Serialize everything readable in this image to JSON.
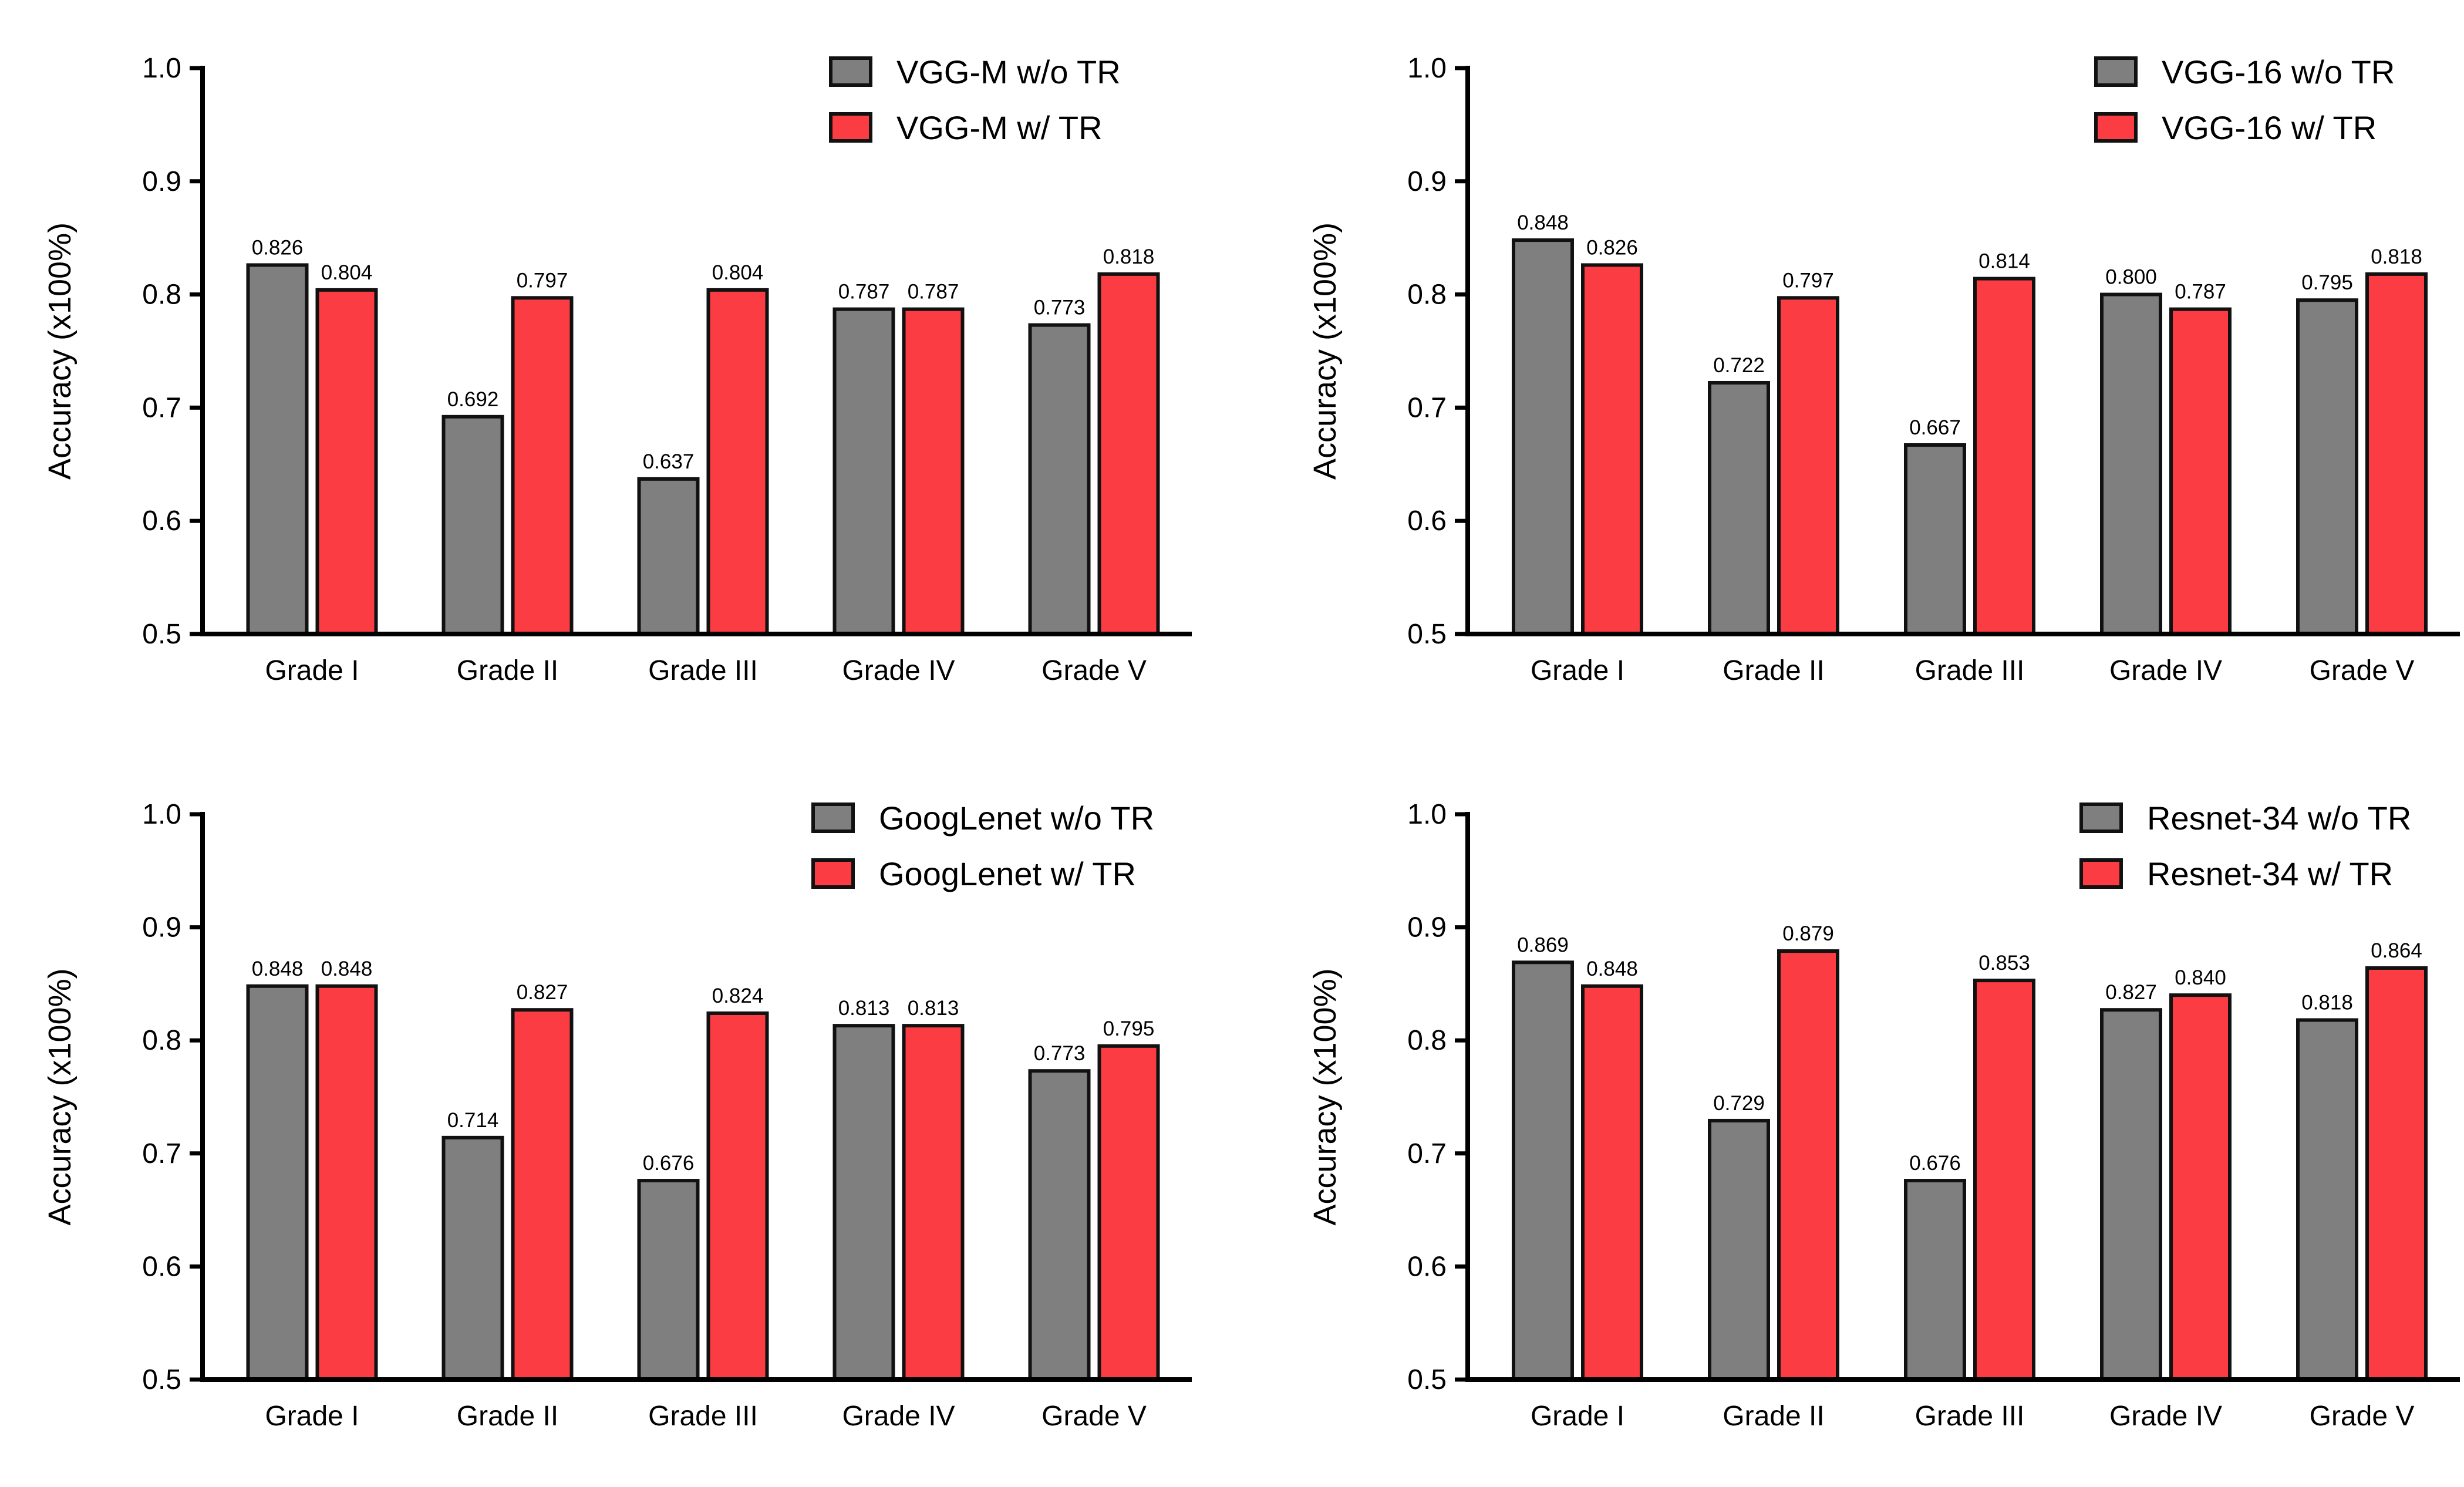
{
  "colors": {
    "without_tr": "#7f7f7f",
    "with_tr": "#fc3c43",
    "axis": "#000000",
    "bar_edge": "#111111"
  },
  "chart_data": [
    {
      "type": "bar",
      "title": "",
      "xlabel": "",
      "ylabel": "Accuracy (x100%)",
      "ylim": [
        0.5,
        1.0
      ],
      "yticks": [
        "0.5",
        "0.6",
        "0.7",
        "0.8",
        "0.9",
        "1.0"
      ],
      "categories": [
        "Grade I",
        "Grade II",
        "Grade III",
        "Grade IV",
        "Grade V"
      ],
      "legend_position": "top-right",
      "series": [
        {
          "name": "VGG-M w/o TR",
          "values": [
            0.826,
            0.692,
            0.637,
            0.787,
            0.773
          ],
          "labels": [
            "0.826",
            "0.692",
            "0.637",
            "0.787",
            "0.773"
          ]
        },
        {
          "name": "VGG-M w/ TR",
          "values": [
            0.804,
            0.797,
            0.804,
            0.787,
            0.818
          ],
          "labels": [
            "0.804",
            "0.797",
            "0.804",
            "0.787",
            "0.818"
          ]
        }
      ]
    },
    {
      "type": "bar",
      "title": "",
      "xlabel": "",
      "ylabel": "Accuracy (x100%)",
      "ylim": [
        0.5,
        1.0
      ],
      "yticks": [
        "0.5",
        "0.6",
        "0.7",
        "0.8",
        "0.9",
        "1.0"
      ],
      "categories": [
        "Grade I",
        "Grade II",
        "Grade III",
        "Grade IV",
        "Grade V"
      ],
      "legend_position": "top-right",
      "series": [
        {
          "name": "VGG-16 w/o TR",
          "values": [
            0.848,
            0.722,
            0.667,
            0.8,
            0.795
          ],
          "labels": [
            "0.848",
            "0.722",
            "0.667",
            "0.800",
            "0.795"
          ]
        },
        {
          "name": "VGG-16 w/ TR",
          "values": [
            0.826,
            0.797,
            0.814,
            0.787,
            0.818
          ],
          "labels": [
            "0.826",
            "0.797",
            "0.814",
            "0.787",
            "0.818"
          ]
        }
      ]
    },
    {
      "type": "bar",
      "title": "",
      "xlabel": "",
      "ylabel": "Accuracy (x100%)",
      "ylim": [
        0.5,
        1.0
      ],
      "yticks": [
        "0.5",
        "0.6",
        "0.7",
        "0.8",
        "0.9",
        "1.0"
      ],
      "categories": [
        "Grade I",
        "Grade II",
        "Grade III",
        "Grade IV",
        "Grade V"
      ],
      "legend_position": "top-right",
      "series": [
        {
          "name": "GoogLenet w/o TR",
          "values": [
            0.848,
            0.714,
            0.676,
            0.813,
            0.773
          ],
          "labels": [
            "0.848",
            "0.714",
            "0.676",
            "0.813",
            "0.773"
          ]
        },
        {
          "name": "GoogLenet w/ TR",
          "values": [
            0.848,
            0.827,
            0.824,
            0.813,
            0.795
          ],
          "labels": [
            "0.848",
            "0.827",
            "0.824",
            "0.813",
            "0.795"
          ]
        }
      ]
    },
    {
      "type": "bar",
      "title": "",
      "xlabel": "",
      "ylabel": "Accuracy (x100%)",
      "ylim": [
        0.5,
        1.0
      ],
      "yticks": [
        "0.5",
        "0.6",
        "0.7",
        "0.8",
        "0.9",
        "1.0"
      ],
      "categories": [
        "Grade I",
        "Grade II",
        "Grade III",
        "Grade IV",
        "Grade V"
      ],
      "legend_position": "top-right",
      "series": [
        {
          "name": "Resnet-34 w/o TR",
          "values": [
            0.869,
            0.729,
            0.676,
            0.827,
            0.818
          ],
          "labels": [
            "0.869",
            "0.729",
            "0.676",
            "0.827",
            "0.818"
          ]
        },
        {
          "name": "Resnet-34 w/ TR",
          "values": [
            0.848,
            0.879,
            0.853,
            0.84,
            0.864
          ],
          "labels": [
            "0.848",
            "0.879",
            "0.853",
            "0.840",
            "0.864"
          ]
        }
      ]
    }
  ]
}
